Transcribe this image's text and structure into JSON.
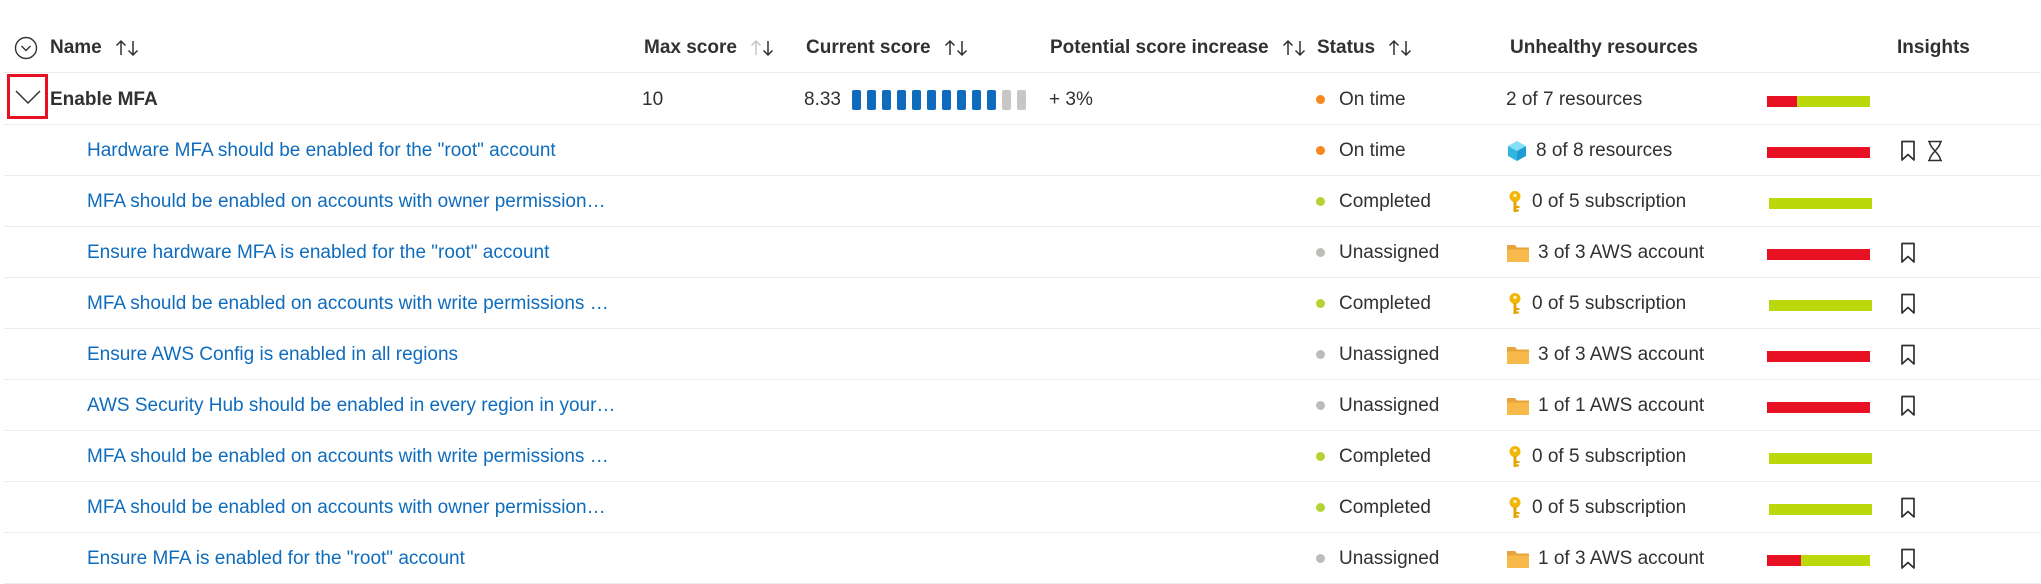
{
  "columns": {
    "name": "Name",
    "max_score": "Max score",
    "current_score": "Current score",
    "potential_increase": "Potential score increase",
    "status": "Status",
    "unhealthy": "Unhealthy resources",
    "insights": "Insights"
  },
  "group": {
    "name": "Enable MFA",
    "max_score": "10",
    "current_score": "8.33",
    "score_fraction": 0.833,
    "potential_increase": "+ 3%",
    "status": "On time",
    "resources": "2 of 7 resources",
    "unhealthy_fraction": 0.29
  },
  "rows": [
    {
      "name": "Hardware MFA should be enabled for the \"root\" account",
      "status": "On time",
      "status_color": "#f7861c",
      "resource_icon": "cube-icon",
      "resources": "8 of 8 resources",
      "unhealthy_fraction": 1.0,
      "bookmark": true,
      "hourglass": true
    },
    {
      "name": "MFA should be enabled on accounts with owner permission…",
      "status": "Completed",
      "status_color": "#b5d334",
      "resource_icon": "key-icon",
      "resources": "0 of 5 subscription",
      "unhealthy_fraction": 0.0,
      "bookmark": false,
      "hourglass": false
    },
    {
      "name": "Ensure hardware MFA is enabled for the \"root\" account",
      "status": "Unassigned",
      "status_color": "#bebbb8",
      "resource_icon": "folder-icon",
      "resources": "3 of 3 AWS account",
      "unhealthy_fraction": 1.0,
      "bookmark": true,
      "hourglass": false
    },
    {
      "name": "MFA should be enabled on accounts with write permissions …",
      "status": "Completed",
      "status_color": "#b5d334",
      "resource_icon": "key-icon",
      "resources": "0 of 5 subscription",
      "unhealthy_fraction": 0.0,
      "bookmark": true,
      "hourglass": false
    },
    {
      "name": "Ensure AWS Config is enabled in all regions",
      "status": "Unassigned",
      "status_color": "#bebbb8",
      "resource_icon": "folder-icon",
      "resources": "3 of 3 AWS account",
      "unhealthy_fraction": 1.0,
      "bookmark": true,
      "hourglass": false
    },
    {
      "name": "AWS Security Hub should be enabled in every region in your…",
      "status": "Unassigned",
      "status_color": "#bebbb8",
      "resource_icon": "folder-icon",
      "resources": "1 of 1 AWS account",
      "unhealthy_fraction": 1.0,
      "bookmark": true,
      "hourglass": false
    },
    {
      "name": "MFA should be enabled on accounts with write permissions …",
      "status": "Completed",
      "status_color": "#b5d334",
      "resource_icon": "key-icon",
      "resources": "0 of 5 subscription",
      "unhealthy_fraction": 0.0,
      "bookmark": false,
      "hourglass": false
    },
    {
      "name": "MFA should be enabled on accounts with owner permission…",
      "status": "Completed",
      "status_color": "#b5d334",
      "resource_icon": "key-icon",
      "resources": "0 of 5 subscription",
      "unhealthy_fraction": 0.0,
      "bookmark": true,
      "hourglass": false
    },
    {
      "name": "Ensure MFA is enabled for the \"root\" account",
      "status": "Unassigned",
      "status_color": "#bebbb8",
      "resource_icon": "folder-icon",
      "resources": "1 of 3 AWS account",
      "unhealthy_fraction": 0.33,
      "bookmark": true,
      "hourglass": false
    }
  ],
  "colors": {
    "unhealthy": "#e81123",
    "healthy": "#bad80a",
    "score_fill": "#0f6cbd",
    "score_empty": "#c8c6c4",
    "link": "#0f6cbd",
    "highlight": "#e81123",
    "on_time": "#f7861c"
  }
}
